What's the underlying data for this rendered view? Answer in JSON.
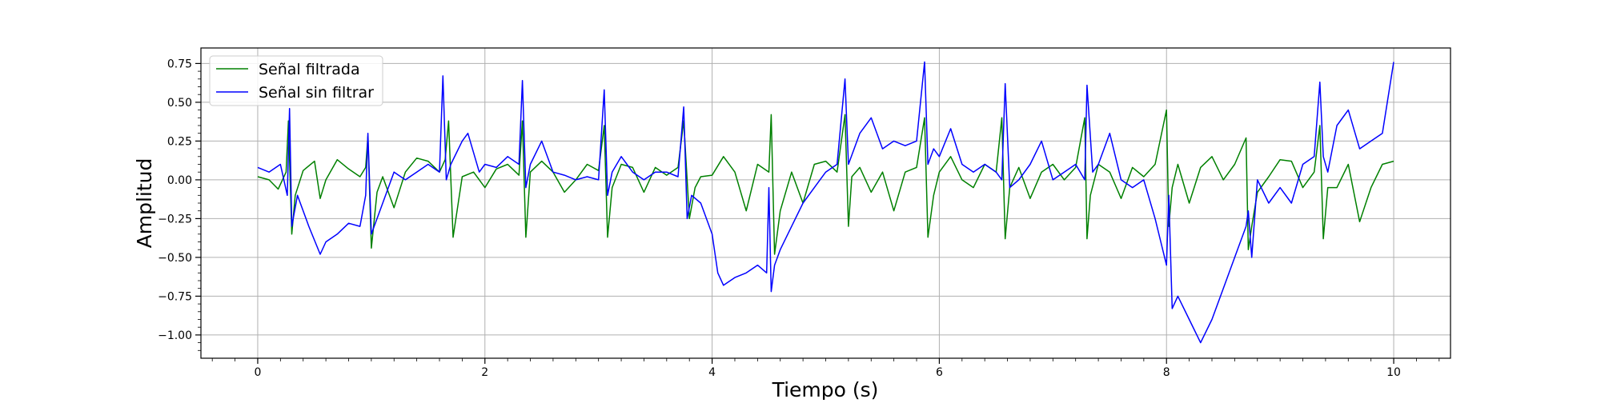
{
  "chart_data": {
    "type": "line",
    "title": "",
    "xlabel": "Tiempo (s)",
    "ylabel": "Amplitud",
    "xlim": [
      -0.5,
      10.5
    ],
    "ylim": [
      -1.15,
      0.85
    ],
    "xticks": [
      0,
      2,
      4,
      6,
      8,
      10
    ],
    "xtick_labels": [
      "0",
      "2",
      "4",
      "6",
      "8",
      "10"
    ],
    "yticks": [
      0.75,
      0.5,
      0.25,
      0.0,
      -0.25,
      -0.5,
      -0.75,
      -1.0
    ],
    "ytick_labels": [
      "0.75",
      "0.50",
      "0.25",
      "0.00",
      "−0.25",
      "−0.50",
      "−0.75",
      "−1.00"
    ],
    "grid": true,
    "legend_position": "top-left",
    "series": [
      {
        "name": "Señal filtrada",
        "color": "#008000",
        "x": [
          0,
          0.1,
          0.18,
          0.25,
          0.27,
          0.3,
          0.33,
          0.4,
          0.5,
          0.55,
          0.6,
          0.7,
          0.8,
          0.9,
          0.95,
          0.97,
          1.0,
          1.05,
          1.1,
          1.2,
          1.3,
          1.4,
          1.5,
          1.6,
          1.65,
          1.68,
          1.72,
          1.8,
          1.9,
          2.0,
          2.1,
          2.2,
          2.3,
          2.33,
          2.36,
          2.4,
          2.5,
          2.6,
          2.7,
          2.8,
          2.9,
          3.0,
          3.05,
          3.08,
          3.12,
          3.2,
          3.3,
          3.4,
          3.5,
          3.6,
          3.7,
          3.75,
          3.8,
          3.85,
          3.9,
          4.0,
          4.1,
          4.2,
          4.3,
          4.4,
          4.5,
          4.52,
          4.55,
          4.6,
          4.7,
          4.8,
          4.9,
          5.0,
          5.1,
          5.17,
          5.2,
          5.23,
          5.3,
          5.4,
          5.5,
          5.6,
          5.7,
          5.8,
          5.87,
          5.9,
          5.95,
          6.0,
          6.1,
          6.2,
          6.3,
          6.4,
          6.5,
          6.55,
          6.58,
          6.62,
          6.7,
          6.8,
          6.9,
          7.0,
          7.1,
          7.2,
          7.28,
          7.3,
          7.33,
          7.4,
          7.5,
          7.6,
          7.7,
          7.8,
          7.9,
          8.0,
          8.02,
          8.05,
          8.1,
          8.2,
          8.3,
          8.4,
          8.5,
          8.6,
          8.7,
          8.72,
          8.75,
          8.8,
          8.9,
          9.0,
          9.1,
          9.2,
          9.3,
          9.35,
          9.38,
          9.42,
          9.5,
          9.6,
          9.7,
          9.8,
          9.9,
          10.0
        ],
        "y": [
          0.02,
          0.0,
          -0.06,
          0.05,
          0.38,
          -0.35,
          -0.1,
          0.06,
          0.12,
          -0.12,
          0.0,
          0.13,
          0.07,
          0.02,
          0.08,
          0.28,
          -0.44,
          -0.08,
          0.02,
          -0.18,
          0.05,
          0.14,
          0.12,
          0.05,
          0.13,
          0.38,
          -0.37,
          0.02,
          0.05,
          -0.05,
          0.07,
          0.1,
          0.03,
          0.38,
          -0.37,
          0.05,
          0.12,
          0.05,
          -0.08,
          0.0,
          0.1,
          0.06,
          0.35,
          -0.37,
          -0.05,
          0.1,
          0.08,
          -0.08,
          0.08,
          0.03,
          0.08,
          0.38,
          -0.25,
          -0.05,
          0.02,
          0.03,
          0.15,
          0.05,
          -0.2,
          0.1,
          0.05,
          0.42,
          -0.48,
          -0.2,
          0.05,
          -0.15,
          0.1,
          0.12,
          0.05,
          0.42,
          -0.3,
          0.02,
          0.08,
          -0.08,
          0.05,
          -0.2,
          0.05,
          0.08,
          0.4,
          -0.37,
          -0.1,
          0.05,
          0.15,
          0.0,
          -0.05,
          0.1,
          0.05,
          0.4,
          -0.38,
          -0.05,
          0.08,
          -0.12,
          0.05,
          0.1,
          0.0,
          0.08,
          0.4,
          -0.38,
          -0.1,
          0.1,
          0.05,
          -0.12,
          0.08,
          0.02,
          0.1,
          0.45,
          -0.3,
          -0.05,
          0.1,
          -0.15,
          0.08,
          0.15,
          0.0,
          0.1,
          0.27,
          -0.45,
          -0.3,
          -0.08,
          0.02,
          0.13,
          0.12,
          -0.05,
          0.05,
          0.35,
          -0.38,
          -0.05,
          -0.05,
          0.1,
          -0.27,
          -0.05,
          0.1,
          0.12
        ]
      },
      {
        "name": "Señal sin filtrar",
        "color": "#0000ff",
        "x": [
          0,
          0.1,
          0.2,
          0.26,
          0.28,
          0.3,
          0.35,
          0.45,
          0.55,
          0.6,
          0.7,
          0.8,
          0.9,
          0.95,
          0.97,
          1.0,
          1.1,
          1.2,
          1.3,
          1.4,
          1.5,
          1.6,
          1.63,
          1.66,
          1.7,
          1.8,
          1.85,
          1.95,
          2.0,
          2.1,
          2.2,
          2.3,
          2.33,
          2.36,
          2.4,
          2.5,
          2.6,
          2.7,
          2.8,
          2.9,
          3.0,
          3.05,
          3.08,
          3.12,
          3.2,
          3.3,
          3.4,
          3.5,
          3.6,
          3.7,
          3.75,
          3.78,
          3.82,
          3.9,
          4.0,
          4.05,
          4.1,
          4.2,
          4.3,
          4.4,
          4.48,
          4.5,
          4.52,
          4.55,
          4.6,
          4.7,
          4.8,
          4.9,
          5.0,
          5.1,
          5.17,
          5.2,
          5.25,
          5.3,
          5.4,
          5.5,
          5.6,
          5.7,
          5.8,
          5.87,
          5.9,
          5.95,
          6.0,
          6.1,
          6.2,
          6.3,
          6.4,
          6.5,
          6.55,
          6.58,
          6.62,
          6.7,
          6.8,
          6.9,
          7.0,
          7.1,
          7.2,
          7.28,
          7.3,
          7.35,
          7.4,
          7.5,
          7.6,
          7.7,
          7.8,
          7.9,
          7.95,
          8.0,
          8.02,
          8.05,
          8.1,
          8.2,
          8.3,
          8.4,
          8.5,
          8.6,
          8.7,
          8.72,
          8.75,
          8.8,
          8.9,
          9.0,
          9.1,
          9.2,
          9.3,
          9.35,
          9.38,
          9.42,
          9.5,
          9.6,
          9.7,
          9.8,
          9.9,
          10.0
        ],
        "y": [
          0.08,
          0.05,
          0.1,
          -0.1,
          0.46,
          -0.3,
          -0.1,
          -0.3,
          -0.48,
          -0.4,
          -0.35,
          -0.28,
          -0.3,
          -0.1,
          0.3,
          -0.35,
          -0.15,
          0.05,
          0.0,
          0.05,
          0.1,
          0.05,
          0.67,
          0.0,
          0.1,
          0.25,
          0.3,
          0.05,
          0.1,
          0.08,
          0.15,
          0.1,
          0.64,
          -0.05,
          0.1,
          0.25,
          0.05,
          0.03,
          0.0,
          0.02,
          0.0,
          0.58,
          -0.1,
          0.05,
          0.15,
          0.05,
          0.0,
          0.05,
          0.05,
          0.02,
          0.47,
          -0.25,
          -0.1,
          -0.15,
          -0.35,
          -0.6,
          -0.68,
          -0.63,
          -0.6,
          -0.55,
          -0.6,
          -0.05,
          -0.72,
          -0.55,
          -0.45,
          -0.3,
          -0.15,
          -0.05,
          0.05,
          0.1,
          0.65,
          0.1,
          0.2,
          0.3,
          0.4,
          0.2,
          0.25,
          0.22,
          0.25,
          0.76,
          0.1,
          0.2,
          0.15,
          0.33,
          0.1,
          0.05,
          0.1,
          0.05,
          0.0,
          0.62,
          -0.05,
          0.0,
          0.1,
          0.25,
          0.0,
          0.05,
          0.1,
          0.0,
          0.61,
          0.05,
          0.1,
          0.3,
          0.0,
          -0.05,
          0.0,
          -0.25,
          -0.4,
          -0.55,
          -0.1,
          -0.83,
          -0.75,
          -0.9,
          -1.05,
          -0.9,
          -0.7,
          -0.5,
          -0.3,
          -0.2,
          -0.5,
          0.0,
          -0.15,
          -0.05,
          -0.15,
          0.1,
          0.15,
          0.63,
          0.15,
          0.05,
          0.35,
          0.45,
          0.2,
          0.25,
          0.3,
          0.76
        ]
      }
    ]
  }
}
